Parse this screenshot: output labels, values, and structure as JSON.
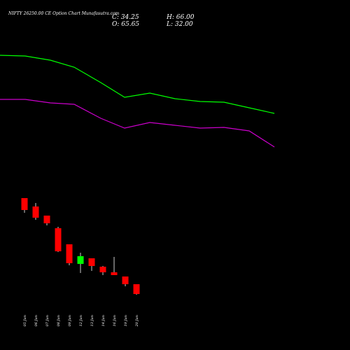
{
  "chart_data": {
    "type": "candlestick",
    "title": "NIFTY 26250.00 CE Option Chart Munafasutra.com",
    "ohlc": {
      "close_label": "C: 34.25",
      "high_label": "H: 66.00",
      "open_label": "O: 65.65",
      "low_label": "L: 32.00"
    },
    "categories": [
      "05 Jun",
      "06 Jun",
      "07 Jun",
      "08 Jun",
      "09 Jun",
      "12 Jun",
      "13 Jun",
      "14 Jun",
      "16 Jun",
      "19 Jun",
      "20 Jun"
    ],
    "candles": [
      {
        "open": 217,
        "high": 217,
        "low": 196,
        "close": 200
      },
      {
        "open": 205,
        "high": 210,
        "low": 186,
        "close": 189
      },
      {
        "open": 192,
        "high": 192,
        "low": 178,
        "close": 181
      },
      {
        "open": 174,
        "high": 176,
        "low": 140,
        "close": 141
      },
      {
        "open": 151,
        "high": 151,
        "low": 121,
        "close": 124
      },
      {
        "open": 123,
        "high": 139,
        "low": 110,
        "close": 134
      },
      {
        "open": 131,
        "high": 131,
        "low": 113,
        "close": 120
      },
      {
        "open": 119,
        "high": 120,
        "low": 107,
        "close": 111
      },
      {
        "open": 111,
        "high": 133,
        "low": 107,
        "close": 107
      },
      {
        "open": 105,
        "high": 105,
        "low": 91,
        "close": 94
      },
      {
        "open": 94,
        "high": 94,
        "low": 79,
        "close": 80
      }
    ],
    "upper_line": {
      "color": "#00ff00",
      "values": [
        421,
        420,
        414,
        404,
        382,
        361,
        367,
        359,
        355,
        354,
        346,
        338
      ]
    },
    "lower_line": {
      "color": "#cc00cc",
      "values": [
        358,
        358,
        353,
        351,
        331,
        317,
        325,
        321,
        317,
        318,
        313,
        290
      ]
    },
    "y_range": [
      0,
      500
    ],
    "colors": {
      "up": "#00ff00",
      "down": "#ff0000",
      "wick": "#ffffff",
      "background": "#000000"
    }
  }
}
